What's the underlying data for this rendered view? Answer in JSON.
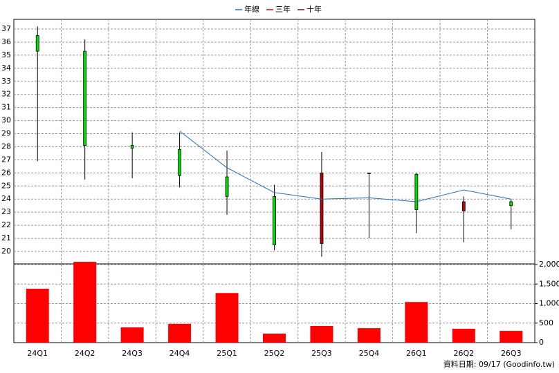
{
  "chart_data": {
    "type": "candlestick",
    "categories": [
      "24Q1",
      "24Q2",
      "24Q3",
      "24Q4",
      "25Q1",
      "25Q2",
      "25Q3",
      "25Q4",
      "26Q1",
      "26Q2",
      "26Q3"
    ],
    "open": [
      36.5,
      35.3,
      28.1,
      27.8,
      25.7,
      24.2,
      20.6,
      26.0,
      25.9,
      23.1,
      23.8
    ],
    "high": [
      37.2,
      36.2,
      29.1,
      29.1,
      27.7,
      25.1,
      27.6,
      26.0,
      26.0,
      24.2,
      24.0
    ],
    "low": [
      26.9,
      25.5,
      25.6,
      24.9,
      22.8,
      20.1,
      19.6,
      21.0,
      21.4,
      20.7,
      21.7
    ],
    "close": [
      35.3,
      28.1,
      27.9,
      25.8,
      24.2,
      20.5,
      26.0,
      26.0,
      23.2,
      23.8,
      23.5
    ],
    "up_color": "#c00000",
    "down_color": "#00e000",
    "series": [
      {
        "name": "年線",
        "color": "#1e6fd0",
        "values": [
          null,
          null,
          null,
          29.2,
          26.4,
          24.5,
          24.0,
          24.1,
          23.8,
          24.7,
          24.0
        ]
      },
      {
        "name": "三年",
        "color": "#e00000",
        "values": [
          null,
          null,
          null,
          null,
          null,
          null,
          null,
          null,
          null,
          null,
          null
        ]
      },
      {
        "name": "十年",
        "color": "#800040",
        "values": [
          null,
          null,
          null,
          null,
          null,
          null,
          null,
          null,
          null,
          null,
          null
        ]
      }
    ],
    "volume": {
      "color": "#ff0000",
      "axis": "y2",
      "values": [
        1380,
        2070,
        390,
        480,
        1270,
        230,
        425,
        370,
        1040,
        354,
        300
      ]
    },
    "ylim": [
      19.05,
      37.74
    ],
    "yticks": [
      20,
      21,
      22,
      23,
      24,
      25,
      26,
      27,
      28,
      29,
      30,
      31,
      32,
      33,
      34,
      35,
      36,
      37
    ],
    "y2lim": [
      0,
      2000
    ],
    "y2ticks": [
      0,
      500,
      {
        "value": 1000,
        "label": "1,000"
      },
      {
        "value": 1500,
        "label": "1,500"
      },
      {
        "value": 2000,
        "label": "2,000"
      }
    ],
    "grid": true,
    "footer": "資料日期: 09/17 (Goodinfo.tw)"
  }
}
